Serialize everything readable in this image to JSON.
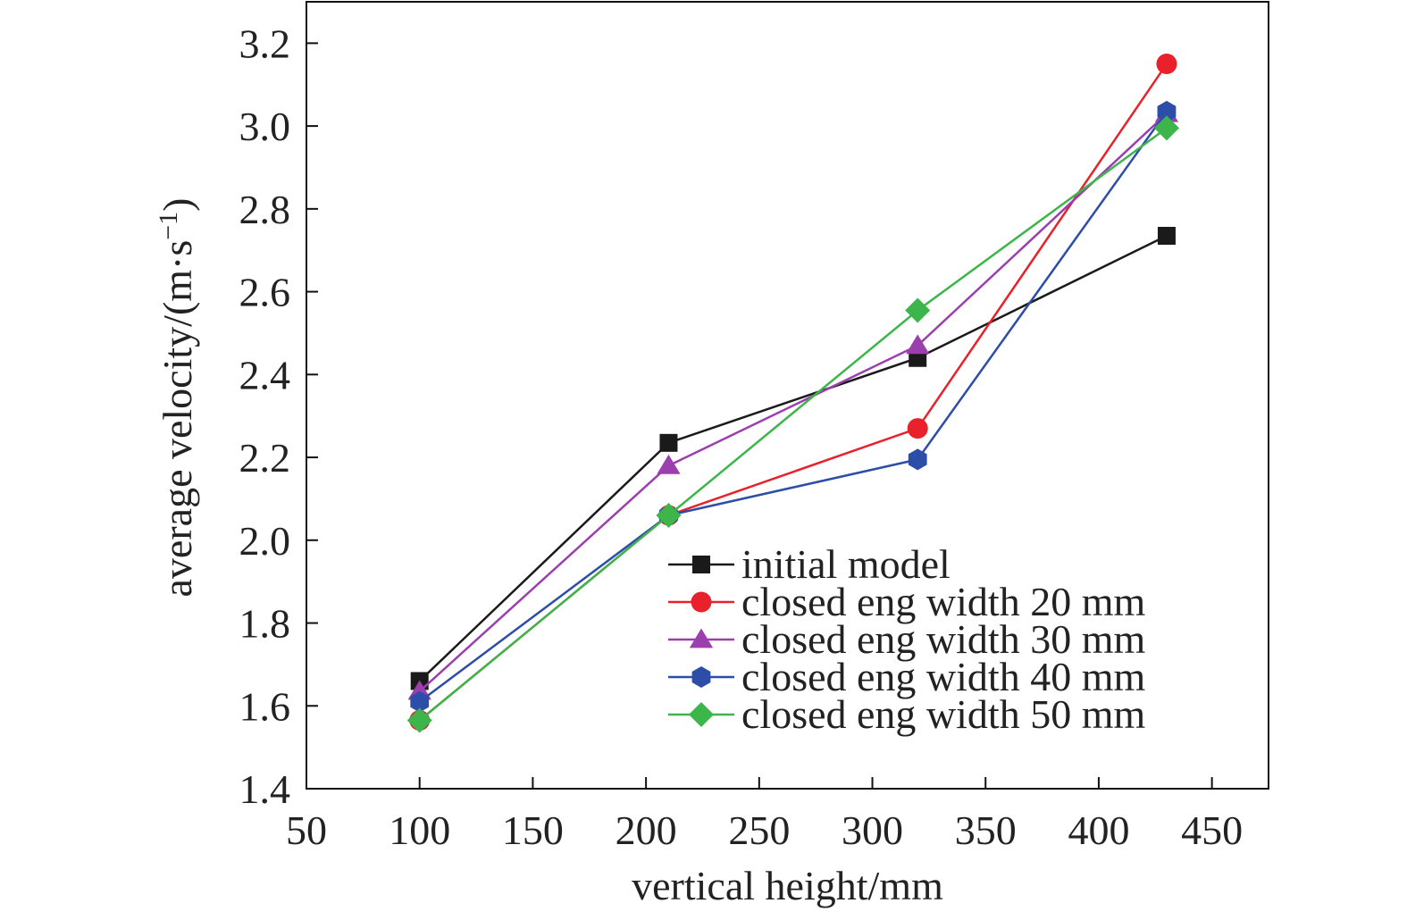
{
  "chart_data": {
    "type": "line",
    "title": "",
    "xlabel": "vertical height/mm",
    "ylabel": "average velocity/(m·s",
    "ylabel_superscript": "−1",
    "ylabel_close": ")",
    "xlim": [
      50,
      475
    ],
    "ylim": [
      1.4,
      3.3
    ],
    "xticks": [
      50,
      100,
      150,
      200,
      250,
      300,
      350,
      400,
      450
    ],
    "yticks": [
      1.4,
      1.6,
      1.8,
      2.0,
      2.2,
      2.4,
      2.6,
      2.8,
      3.0,
      3.2
    ],
    "ytick_labels": [
      "1.4",
      "1.6",
      "1.8",
      "2.0",
      "2.2",
      "2.4",
      "2.6",
      "2.8",
      "3.0",
      "3.2"
    ],
    "grid": false,
    "legend_position": "bottom-right",
    "x": [
      100,
      210,
      320,
      430
    ],
    "series": [
      {
        "name": "initial model",
        "values": [
          1.66,
          2.235,
          2.44,
          2.735
        ],
        "color": "#1a1a1a",
        "marker": "square"
      },
      {
        "name": "closed eng width 20 mm",
        "values": [
          1.565,
          2.06,
          2.27,
          3.15
        ],
        "color": "#e8212b",
        "marker": "circle"
      },
      {
        "name": "closed eng width 30 mm",
        "values": [
          1.635,
          2.18,
          2.47,
          3.03
        ],
        "color": "#9b3fae",
        "marker": "triangle"
      },
      {
        "name": "closed eng width 40 mm",
        "values": [
          1.61,
          2.06,
          2.195,
          3.035
        ],
        "color": "#2c4da8",
        "marker": "hexagon"
      },
      {
        "name": "closed eng width 50 mm",
        "values": [
          1.565,
          2.06,
          2.555,
          2.995
        ],
        "color": "#3cb54a",
        "marker": "diamond"
      }
    ]
  }
}
